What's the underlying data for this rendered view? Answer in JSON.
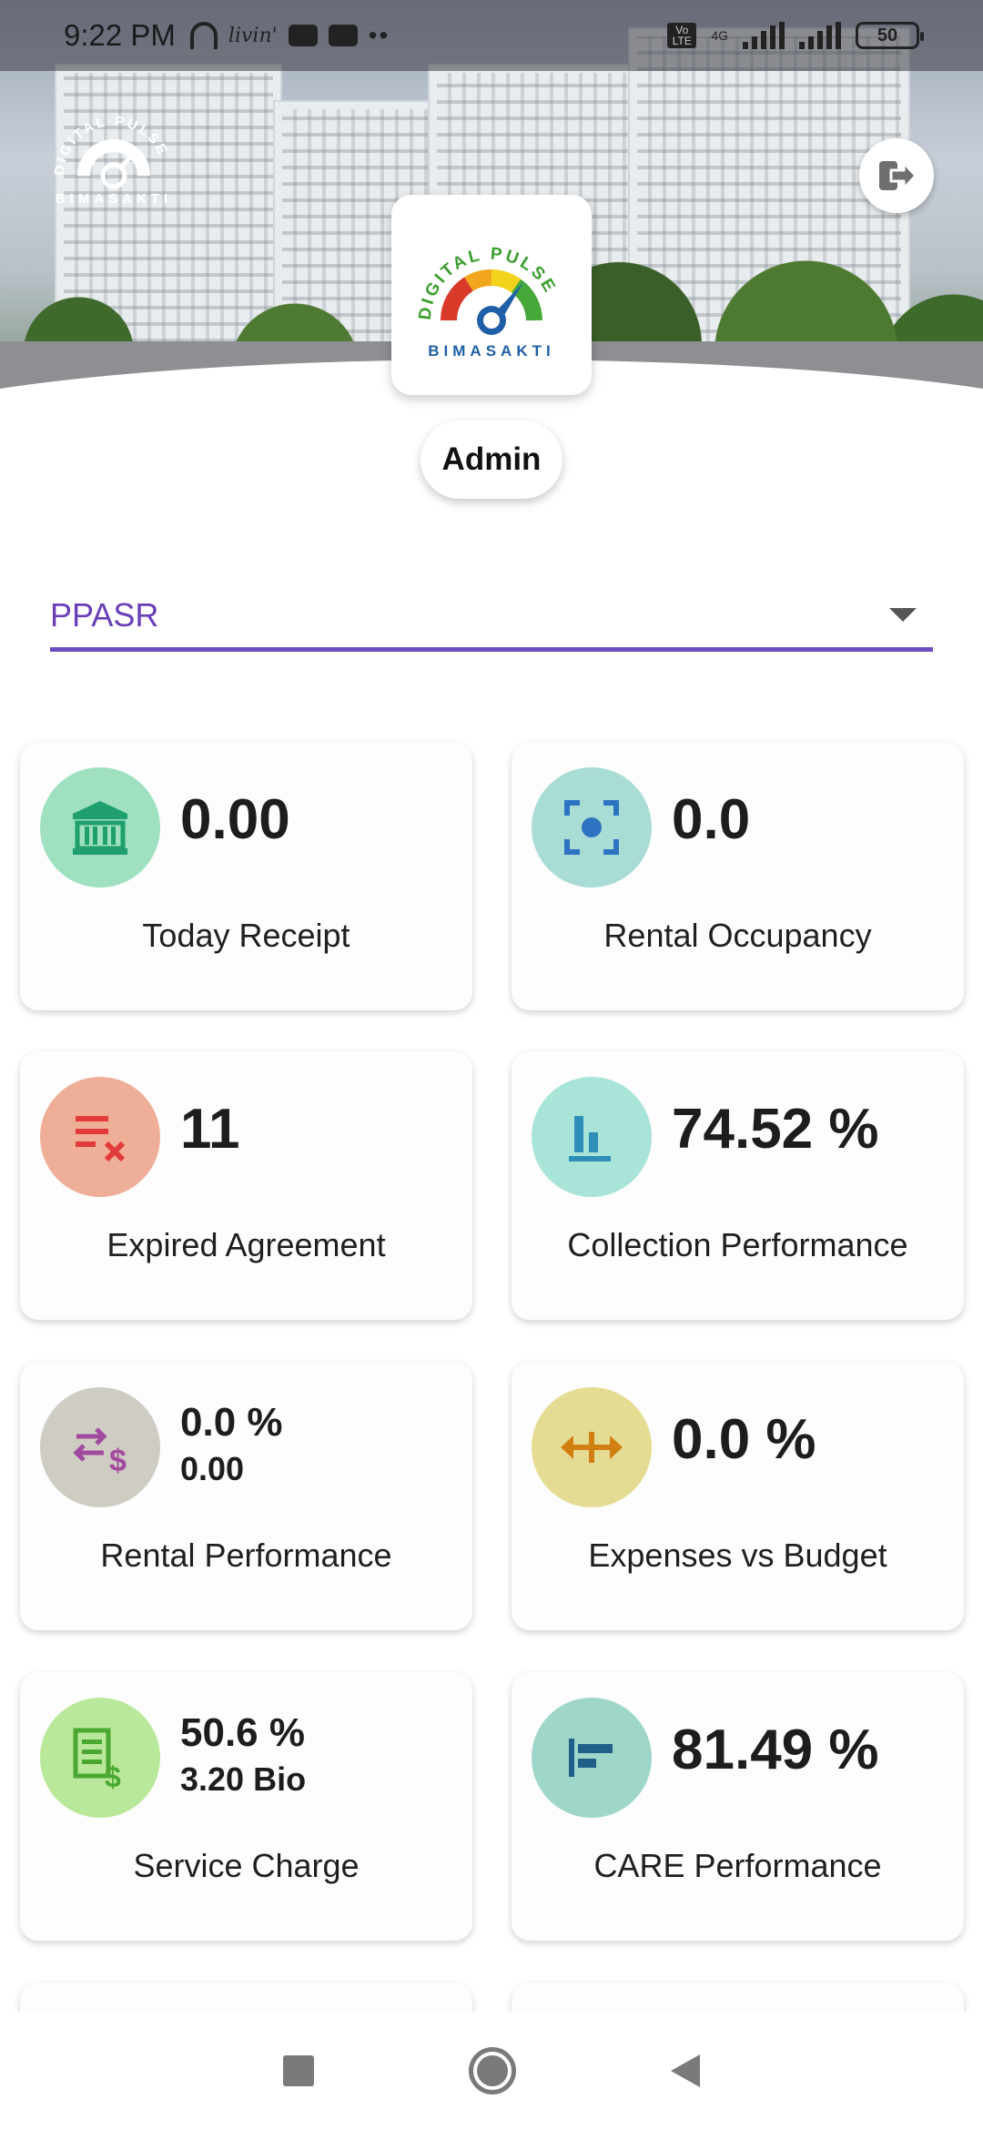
{
  "status_bar": {
    "time": "9:22 PM",
    "app_label": "livin'",
    "network": "4G",
    "volte": "Vo LTE",
    "battery": "50"
  },
  "header": {
    "mini_logo_text": "BIMASAKTI",
    "mini_logo_arc_text": "DIGITAL PULSE",
    "logo_arc_text": "DIGITAL PULSE",
    "logo_brand": "BIMASAKTI",
    "user_role": "Admin"
  },
  "selector": {
    "value": "PPASR"
  },
  "cards": [
    {
      "value": "0.00",
      "sub": "",
      "label": "Today Receipt",
      "icon": "bank-icon",
      "circle_color": "#9ee0c0",
      "icon_color": "#1f9e6e"
    },
    {
      "value": "0.0",
      "sub": "",
      "label": "Rental Occupancy",
      "icon": "focus-center-icon",
      "circle_color": "#a8dcd4",
      "icon_color": "#2d73c2"
    },
    {
      "value": "11",
      "sub": "",
      "label": "Expired Agreement",
      "icon": "list-remove-icon",
      "circle_color": "#efae98",
      "icon_color": "#e23b3b"
    },
    {
      "value": "74.52 %",
      "sub": "",
      "label": "Collection Performance",
      "icon": "bar-chart-icon",
      "circle_color": "#a9e4d8",
      "icon_color": "#2d8fb8"
    },
    {
      "value": "0.0 %",
      "sub": "0.00",
      "label": "Rental Performance",
      "icon": "swap-dollar-icon",
      "circle_color": "#cfccc4",
      "icon_color": "#a14a9e"
    },
    {
      "value": "0.0 %",
      "sub": "",
      "label": "Expenses vs Budget",
      "icon": "arrows-horizontal-icon",
      "circle_color": "#e4dc92",
      "icon_color": "#d27f12"
    },
    {
      "value": "50.6 %",
      "sub": "3.20 Bio",
      "label": "Service Charge",
      "icon": "invoice-dollar-icon",
      "circle_color": "#b9e89a",
      "icon_color": "#4aa832"
    },
    {
      "value": "81.49 %",
      "sub": "",
      "label": "CARE Performance",
      "icon": "align-left-chart-icon",
      "circle_color": "#9fd6ca",
      "icon_color": "#1f5f8a"
    }
  ],
  "nav": {
    "recent": "recent-apps-icon",
    "home": "home-icon",
    "back": "back-icon"
  }
}
